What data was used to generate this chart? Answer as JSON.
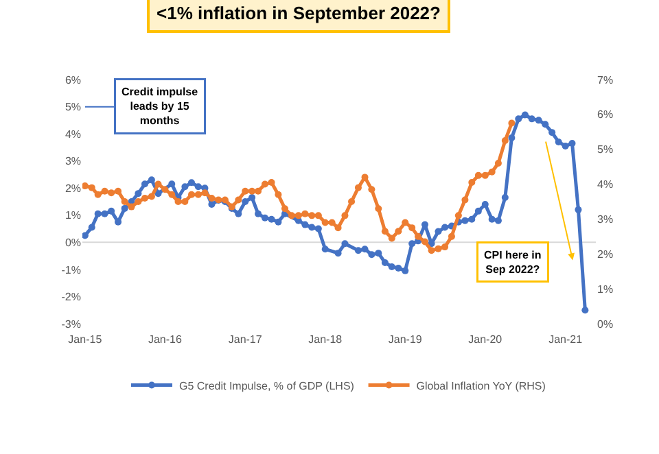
{
  "chart_data": {
    "type": "line",
    "title": "<1% inflation in September 2022?",
    "xlim": [
      "2014-12-20",
      "2021-05-20"
    ],
    "xticks": [
      {
        "value": "2015-01",
        "label": "Jan-15"
      },
      {
        "value": "2016-01",
        "label": "Jan-16"
      },
      {
        "value": "2017-01",
        "label": "Jan-17"
      },
      {
        "value": "2018-01",
        "label": "Jan-18"
      },
      {
        "value": "2019-01",
        "label": "Jan-19"
      },
      {
        "value": "2020-01",
        "label": "Jan-20"
      },
      {
        "value": "2021-01",
        "label": "Jan-21"
      }
    ],
    "ylim": [
      -3,
      6
    ],
    "yticks": [
      {
        "value": -3,
        "label": "-3%"
      },
      {
        "value": -2,
        "label": "-2%"
      },
      {
        "value": -1,
        "label": "-1%"
      },
      {
        "value": 0,
        "label": "0%"
      },
      {
        "value": 1,
        "label": "1%"
      },
      {
        "value": 2,
        "label": "2%"
      },
      {
        "value": 3,
        "label": "3%"
      },
      {
        "value": 4,
        "label": "4%"
      },
      {
        "value": 5,
        "label": "5%"
      },
      {
        "value": 6,
        "label": "6%"
      }
    ],
    "y2lim": [
      0,
      7
    ],
    "y2ticks": [
      {
        "value": 0,
        "label": "0%"
      },
      {
        "value": 1,
        "label": "1%"
      },
      {
        "value": 2,
        "label": "2%"
      },
      {
        "value": 3,
        "label": "3%"
      },
      {
        "value": 4,
        "label": "4%"
      },
      {
        "value": 5,
        "label": "5%"
      },
      {
        "value": 6,
        "label": "6%"
      },
      {
        "value": 7,
        "label": "7%"
      }
    ],
    "grid": false,
    "legend": "bottom",
    "marker": "circle",
    "line_style": "solid",
    "ref_lines": [
      {
        "axis": "y",
        "value": 0,
        "color": "#d9d9d9"
      }
    ],
    "annotations": [
      "Credit impulse leads by 15 months",
      "CPI here in Sep 2022?"
    ],
    "series": [
      {
        "name": "G5 Credit Impulse, % of GDP (LHS)",
        "color": "#4472c4",
        "x": [
          "2015-01",
          "2015-02",
          "2015-03",
          "2015-04",
          "2015-05",
          "2015-06",
          "2015-07",
          "2015-08",
          "2015-09",
          "2015-10",
          "2015-11",
          "2015-12",
          "2016-02",
          "2016-03",
          "2016-04",
          "2016-05",
          "2016-06",
          "2016-07",
          "2016-08",
          "2016-09",
          "2016-10",
          "2016-11",
          "2016-12",
          "2017-01",
          "2017-02",
          "2017-03",
          "2017-04",
          "2017-05",
          "2017-06",
          "2017-07",
          "2017-09",
          "2017-10",
          "2017-11",
          "2017-12",
          "2018-01",
          "2018-03",
          "2018-04",
          "2018-06",
          "2018-07",
          "2018-08",
          "2018-09",
          "2018-10",
          "2018-11",
          "2018-12",
          "2019-01",
          "2019-02",
          "2019-03",
          "2019-04",
          "2019-05",
          "2019-06",
          "2019-07",
          "2019-08",
          "2019-09",
          "2019-10",
          "2019-11",
          "2019-12",
          "2020-01",
          "2020-02",
          "2020-03",
          "2020-04",
          "2020-05",
          "2020-06",
          "2020-07",
          "2020-08",
          "2020-09",
          "2020-10",
          "2020-11",
          "2020-12",
          "2021-01",
          "2021-02",
          "2021-03",
          "2021-04"
        ],
        "values": [
          0.25,
          0.55,
          1.05,
          1.05,
          1.15,
          0.75,
          1.25,
          1.5,
          1.8,
          2.15,
          2.3,
          1.8,
          2.15,
          1.65,
          2.05,
          2.2,
          2.05,
          2.0,
          1.4,
          1.55,
          1.5,
          1.25,
          1.05,
          1.5,
          1.65,
          1.05,
          0.9,
          0.85,
          0.75,
          1.05,
          0.8,
          0.65,
          0.55,
          0.5,
          -0.25,
          -0.4,
          -0.05,
          -0.3,
          -0.25,
          -0.45,
          -0.4,
          -0.75,
          -0.9,
          -0.95,
          -1.05,
          -0.05,
          0.05,
          0.65,
          -0.05,
          0.4,
          0.55,
          0.6,
          0.75,
          0.8,
          0.85,
          1.15,
          1.4,
          0.85,
          0.8,
          1.65,
          3.85,
          4.55,
          4.7,
          4.55,
          4.5,
          4.35,
          4.05,
          3.7,
          3.55,
          3.65,
          1.2,
          -2.5
        ]
      },
      {
        "name": "Global Inflation YoY (RHS)",
        "color": "#ed7d31",
        "axis": "y2",
        "x": [
          "2015-01",
          "2015-02",
          "2015-03",
          "2015-04",
          "2015-05",
          "2015-06",
          "2015-07",
          "2015-08",
          "2015-09",
          "2015-10",
          "2015-11",
          "2015-12",
          "2016-01",
          "2016-02",
          "2016-03",
          "2016-04",
          "2016-05",
          "2016-06",
          "2016-07",
          "2016-08",
          "2016-09",
          "2016-10",
          "2016-11",
          "2016-12",
          "2017-01",
          "2017-02",
          "2017-03",
          "2017-04",
          "2017-05",
          "2017-06",
          "2017-07",
          "2017-08",
          "2017-09",
          "2017-10",
          "2017-11",
          "2017-12",
          "2018-01",
          "2018-02",
          "2018-03",
          "2018-04",
          "2018-05",
          "2018-06",
          "2018-07",
          "2018-08",
          "2018-09",
          "2018-10",
          "2018-11",
          "2018-12",
          "2019-01",
          "2019-02",
          "2019-03",
          "2019-04",
          "2019-05",
          "2019-06",
          "2019-07",
          "2019-08",
          "2019-09",
          "2019-10",
          "2019-11",
          "2019-12",
          "2020-01",
          "2020-02",
          "2020-03",
          "2020-04",
          "2020-05"
        ],
        "values": [
          3.95,
          3.9,
          3.7,
          3.8,
          3.75,
          3.8,
          3.5,
          3.35,
          3.5,
          3.6,
          3.65,
          4.0,
          3.85,
          3.7,
          3.5,
          3.5,
          3.7,
          3.7,
          3.75,
          3.6,
          3.55,
          3.55,
          3.35,
          3.55,
          3.8,
          3.8,
          3.8,
          4.0,
          4.05,
          3.7,
          3.3,
          3.1,
          3.1,
          3.15,
          3.1,
          3.1,
          2.9,
          2.9,
          2.75,
          3.1,
          3.5,
          3.9,
          4.2,
          3.85,
          3.3,
          2.65,
          2.45,
          2.65,
          2.9,
          2.75,
          2.5,
          2.35,
          2.1,
          2.15,
          2.2,
          2.5,
          3.1,
          3.55,
          4.05,
          4.25,
          4.25,
          4.35,
          4.6,
          5.25,
          5.75
        ]
      }
    ]
  }
}
